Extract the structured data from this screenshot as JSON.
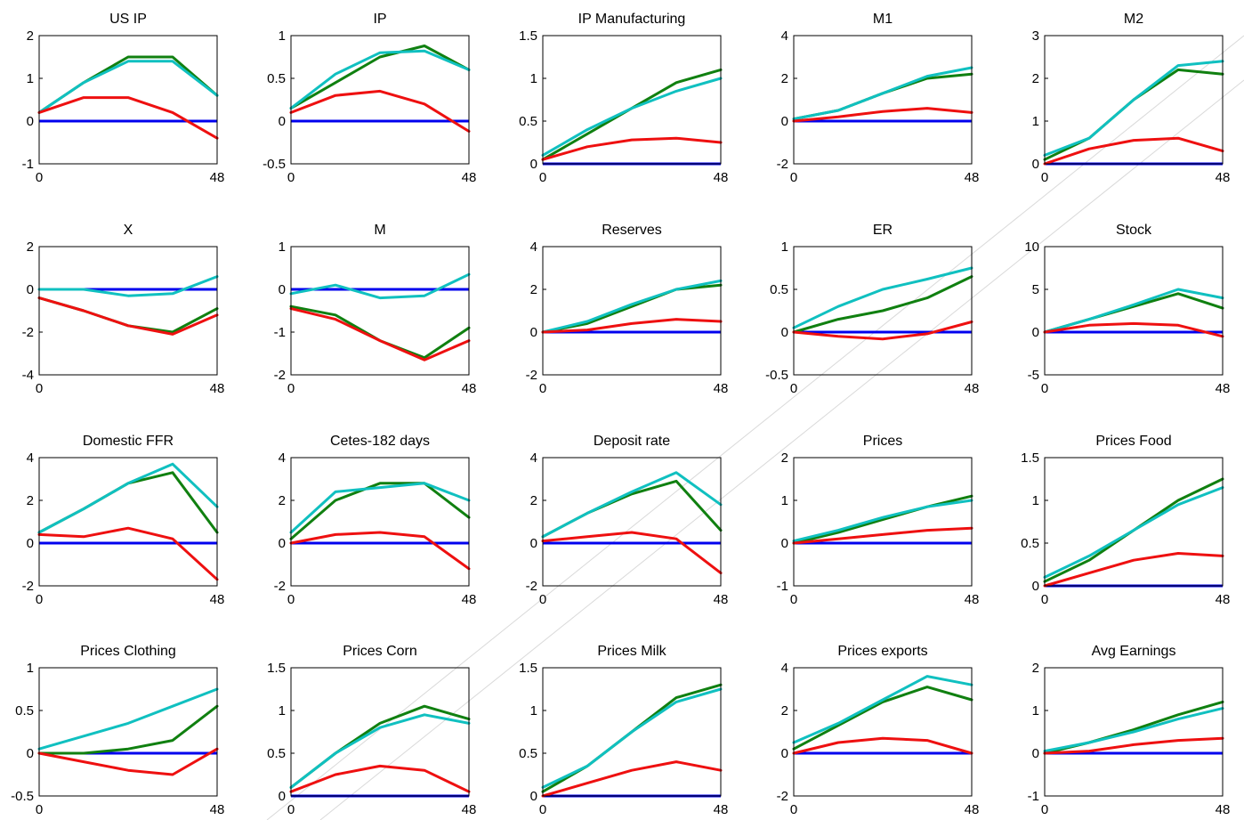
{
  "colors": {
    "green": "#108010",
    "cyan": "#10c0c0",
    "red": "#ee1010",
    "zero_line": "#0000ee"
  },
  "x_range": [
    0,
    48
  ],
  "x_tick_labels": [
    "0",
    "48"
  ],
  "chart_data": [
    {
      "type": "line",
      "title": "US IP",
      "ylim": [
        -1,
        2
      ],
      "yticks": [
        "-1",
        "0",
        "1",
        "2"
      ],
      "x": [
        0,
        12,
        24,
        36,
        48
      ],
      "series": [
        {
          "color": "green",
          "values": [
            0.2,
            0.9,
            1.5,
            1.5,
            0.6
          ]
        },
        {
          "color": "cyan",
          "values": [
            0.2,
            0.9,
            1.4,
            1.4,
            0.6
          ]
        },
        {
          "color": "red",
          "values": [
            0.2,
            0.55,
            0.55,
            0.2,
            -0.4
          ]
        }
      ]
    },
    {
      "type": "line",
      "title": "IP",
      "ylim": [
        -0.5,
        1
      ],
      "yticks": [
        "-0.5",
        "0",
        "0.5",
        "1"
      ],
      "x": [
        0,
        12,
        24,
        36,
        48
      ],
      "series": [
        {
          "color": "green",
          "values": [
            0.15,
            0.45,
            0.75,
            0.88,
            0.6
          ]
        },
        {
          "color": "cyan",
          "values": [
            0.15,
            0.55,
            0.8,
            0.82,
            0.6
          ]
        },
        {
          "color": "red",
          "values": [
            0.1,
            0.3,
            0.35,
            0.2,
            -0.12
          ]
        }
      ]
    },
    {
      "type": "line",
      "title": "IP Manufacturing",
      "ylim": [
        0,
        1.5
      ],
      "yticks": [
        "0",
        "0.5",
        "1",
        "1.5"
      ],
      "x": [
        0,
        12,
        24,
        36,
        48
      ],
      "series": [
        {
          "color": "green",
          "values": [
            0.05,
            0.35,
            0.65,
            0.95,
            1.1
          ]
        },
        {
          "color": "cyan",
          "values": [
            0.1,
            0.4,
            0.65,
            0.85,
            1.0
          ]
        },
        {
          "color": "red",
          "values": [
            0.05,
            0.2,
            0.28,
            0.3,
            0.25
          ]
        }
      ]
    },
    {
      "type": "line",
      "title": "M1",
      "ylim": [
        -2,
        4
      ],
      "yticks": [
        "-2",
        "0",
        "2",
        "4"
      ],
      "x": [
        0,
        12,
        24,
        36,
        48
      ],
      "series": [
        {
          "color": "green",
          "values": [
            0.1,
            0.5,
            1.3,
            2.0,
            2.2
          ]
        },
        {
          "color": "cyan",
          "values": [
            0.1,
            0.5,
            1.3,
            2.1,
            2.5
          ]
        },
        {
          "color": "red",
          "values": [
            0.0,
            0.2,
            0.45,
            0.6,
            0.4
          ]
        }
      ]
    },
    {
      "type": "line",
      "title": "M2",
      "ylim": [
        0,
        3
      ],
      "yticks": [
        "0",
        "1",
        "2",
        "3"
      ],
      "x": [
        0,
        12,
        24,
        36,
        48
      ],
      "series": [
        {
          "color": "green",
          "values": [
            0.1,
            0.6,
            1.5,
            2.2,
            2.1
          ]
        },
        {
          "color": "cyan",
          "values": [
            0.2,
            0.6,
            1.5,
            2.3,
            2.4
          ]
        },
        {
          "color": "red",
          "values": [
            0.0,
            0.35,
            0.55,
            0.6,
            0.3
          ]
        }
      ]
    },
    {
      "type": "line",
      "title": "X",
      "ylim": [
        -4,
        2
      ],
      "yticks": [
        "-4",
        "-2",
        "0",
        "2"
      ],
      "x": [
        0,
        12,
        24,
        36,
        48
      ],
      "series": [
        {
          "color": "green",
          "values": [
            -0.4,
            -1.0,
            -1.7,
            -2.0,
            -0.9
          ]
        },
        {
          "color": "cyan",
          "values": [
            0.0,
            0.0,
            -0.3,
            -0.2,
            0.6
          ]
        },
        {
          "color": "red",
          "values": [
            -0.4,
            -1.0,
            -1.7,
            -2.1,
            -1.2
          ]
        }
      ]
    },
    {
      "type": "line",
      "title": "M",
      "ylim": [
        -2,
        1
      ],
      "yticks": [
        "-2",
        "-1",
        "0",
        "1"
      ],
      "x": [
        0,
        12,
        24,
        36,
        48
      ],
      "series": [
        {
          "color": "green",
          "values": [
            -0.4,
            -0.6,
            -1.2,
            -1.6,
            -0.9
          ]
        },
        {
          "color": "cyan",
          "values": [
            -0.1,
            0.1,
            -0.2,
            -0.15,
            0.35
          ]
        },
        {
          "color": "red",
          "values": [
            -0.45,
            -0.7,
            -1.2,
            -1.65,
            -1.2
          ]
        }
      ]
    },
    {
      "type": "line",
      "title": "Reserves",
      "ylim": [
        -2,
        4
      ],
      "yticks": [
        "-2",
        "0",
        "2",
        "4"
      ],
      "x": [
        0,
        12,
        24,
        36,
        48
      ],
      "series": [
        {
          "color": "green",
          "values": [
            0.0,
            0.4,
            1.2,
            2.0,
            2.2
          ]
        },
        {
          "color": "cyan",
          "values": [
            0.0,
            0.5,
            1.3,
            2.0,
            2.4
          ]
        },
        {
          "color": "red",
          "values": [
            0.0,
            0.1,
            0.4,
            0.6,
            0.5
          ]
        }
      ]
    },
    {
      "type": "line",
      "title": "ER",
      "ylim": [
        -0.5,
        1
      ],
      "yticks": [
        "-0.5",
        "0",
        "0.5",
        "1"
      ],
      "x": [
        0,
        12,
        24,
        36,
        48
      ],
      "series": [
        {
          "color": "green",
          "values": [
            0.0,
            0.15,
            0.25,
            0.4,
            0.65
          ]
        },
        {
          "color": "cyan",
          "values": [
            0.05,
            0.3,
            0.5,
            0.62,
            0.75
          ]
        },
        {
          "color": "red",
          "values": [
            0.0,
            -0.05,
            -0.08,
            -0.02,
            0.12
          ]
        }
      ]
    },
    {
      "type": "line",
      "title": "Stock",
      "ylim": [
        -5,
        10
      ],
      "yticks": [
        "-5",
        "0",
        "5",
        "10"
      ],
      "x": [
        0,
        12,
        24,
        36,
        48
      ],
      "series": [
        {
          "color": "green",
          "values": [
            0.0,
            1.5,
            3.0,
            4.5,
            2.8
          ]
        },
        {
          "color": "cyan",
          "values": [
            0.0,
            1.5,
            3.2,
            5.0,
            4.0
          ]
        },
        {
          "color": "red",
          "values": [
            0.0,
            0.8,
            1.0,
            0.8,
            -0.5
          ]
        }
      ]
    },
    {
      "type": "line",
      "title": "Domestic FFR",
      "ylim": [
        -2,
        4
      ],
      "yticks": [
        "-2",
        "0",
        "2",
        "4"
      ],
      "x": [
        0,
        12,
        24,
        36,
        48
      ],
      "series": [
        {
          "color": "green",
          "values": [
            0.5,
            1.6,
            2.8,
            3.3,
            0.5
          ]
        },
        {
          "color": "cyan",
          "values": [
            0.5,
            1.6,
            2.8,
            3.7,
            1.7
          ]
        },
        {
          "color": "red",
          "values": [
            0.4,
            0.3,
            0.7,
            0.2,
            -1.7
          ]
        }
      ]
    },
    {
      "type": "line",
      "title": "Cetes-182 days",
      "ylim": [
        -2,
        4
      ],
      "yticks": [
        "-2",
        "0",
        "2",
        "4"
      ],
      "x": [
        0,
        12,
        24,
        36,
        48
      ],
      "series": [
        {
          "color": "green",
          "values": [
            0.2,
            2.0,
            2.8,
            2.8,
            1.2
          ]
        },
        {
          "color": "cyan",
          "values": [
            0.5,
            2.4,
            2.6,
            2.8,
            2.0
          ]
        },
        {
          "color": "red",
          "values": [
            0.0,
            0.4,
            0.5,
            0.3,
            -1.2
          ]
        }
      ]
    },
    {
      "type": "line",
      "title": "Deposit rate",
      "ylim": [
        -2,
        4
      ],
      "yticks": [
        "-2",
        "0",
        "2",
        "4"
      ],
      "x": [
        0,
        12,
        24,
        36,
        48
      ],
      "series": [
        {
          "color": "green",
          "values": [
            0.3,
            1.4,
            2.3,
            2.9,
            0.6
          ]
        },
        {
          "color": "cyan",
          "values": [
            0.3,
            1.4,
            2.4,
            3.3,
            1.8
          ]
        },
        {
          "color": "red",
          "values": [
            0.1,
            0.3,
            0.5,
            0.2,
            -1.4
          ]
        }
      ]
    },
    {
      "type": "line",
      "title": "Prices",
      "ylim": [
        -1,
        2
      ],
      "yticks": [
        "-1",
        "0",
        "1",
        "2"
      ],
      "x": [
        0,
        12,
        24,
        36,
        48
      ],
      "series": [
        {
          "color": "green",
          "values": [
            0.0,
            0.25,
            0.55,
            0.85,
            1.1
          ]
        },
        {
          "color": "cyan",
          "values": [
            0.05,
            0.3,
            0.6,
            0.85,
            1.0
          ]
        },
        {
          "color": "red",
          "values": [
            0.0,
            0.1,
            0.2,
            0.3,
            0.35
          ]
        }
      ]
    },
    {
      "type": "line",
      "title": "Prices Food",
      "ylim": [
        0,
        1.5
      ],
      "yticks": [
        "0",
        "0.5",
        "1",
        "1.5"
      ],
      "x": [
        0,
        12,
        24,
        36,
        48
      ],
      "series": [
        {
          "color": "green",
          "values": [
            0.05,
            0.3,
            0.65,
            1.0,
            1.25
          ]
        },
        {
          "color": "cyan",
          "values": [
            0.1,
            0.35,
            0.65,
            0.95,
            1.15
          ]
        },
        {
          "color": "red",
          "values": [
            0.0,
            0.15,
            0.3,
            0.38,
            0.35
          ]
        }
      ]
    },
    {
      "type": "line",
      "title": "Prices Clothing",
      "ylim": [
        -0.5,
        1
      ],
      "yticks": [
        "-0.5",
        "0",
        "0.5",
        "1"
      ],
      "x": [
        0,
        12,
        24,
        36,
        48
      ],
      "series": [
        {
          "color": "green",
          "values": [
            0.0,
            0.0,
            0.05,
            0.15,
            0.55
          ]
        },
        {
          "color": "cyan",
          "values": [
            0.05,
            0.2,
            0.35,
            0.55,
            0.75
          ]
        },
        {
          "color": "red",
          "values": [
            0.0,
            -0.1,
            -0.2,
            -0.25,
            0.05
          ]
        }
      ]
    },
    {
      "type": "line",
      "title": "Prices Corn",
      "ylim": [
        0,
        1.5
      ],
      "yticks": [
        "0",
        "0.5",
        "1",
        "1.5"
      ],
      "x": [
        0,
        12,
        24,
        36,
        48
      ],
      "series": [
        {
          "color": "green",
          "values": [
            0.1,
            0.5,
            0.85,
            1.05,
            0.9
          ]
        },
        {
          "color": "cyan",
          "values": [
            0.1,
            0.5,
            0.8,
            0.95,
            0.85
          ]
        },
        {
          "color": "red",
          "values": [
            0.05,
            0.25,
            0.35,
            0.3,
            0.05
          ]
        }
      ]
    },
    {
      "type": "line",
      "title": "Prices Milk",
      "ylim": [
        0,
        1.5
      ],
      "yticks": [
        "0",
        "0.5",
        "1",
        "1.5"
      ],
      "x": [
        0,
        12,
        24,
        36,
        48
      ],
      "series": [
        {
          "color": "green",
          "values": [
            0.05,
            0.35,
            0.75,
            1.15,
            1.3
          ]
        },
        {
          "color": "cyan",
          "values": [
            0.1,
            0.35,
            0.75,
            1.1,
            1.25
          ]
        },
        {
          "color": "red",
          "values": [
            0.0,
            0.15,
            0.3,
            0.4,
            0.3
          ]
        }
      ]
    },
    {
      "type": "line",
      "title": "Prices exports",
      "ylim": [
        -2,
        4
      ],
      "yticks": [
        "-2",
        "0",
        "2",
        "4"
      ],
      "x": [
        0,
        12,
        24,
        36,
        48
      ],
      "series": [
        {
          "color": "green",
          "values": [
            0.2,
            1.3,
            2.4,
            3.1,
            2.5
          ]
        },
        {
          "color": "cyan",
          "values": [
            0.5,
            1.4,
            2.5,
            3.6,
            3.2
          ]
        },
        {
          "color": "red",
          "values": [
            0.0,
            0.5,
            0.7,
            0.6,
            0.0
          ]
        }
      ]
    },
    {
      "type": "line",
      "title": "Avg Earnings",
      "ylim": [
        -1,
        2
      ],
      "yticks": [
        "-1",
        "0",
        "1",
        "2"
      ],
      "x": [
        0,
        12,
        24,
        36,
        48
      ],
      "series": [
        {
          "color": "green",
          "values": [
            0.0,
            0.25,
            0.55,
            0.9,
            1.2
          ]
        },
        {
          "color": "cyan",
          "values": [
            0.05,
            0.25,
            0.5,
            0.8,
            1.05
          ]
        },
        {
          "color": "red",
          "values": [
            0.0,
            0.05,
            0.2,
            0.3,
            0.35
          ]
        }
      ]
    }
  ]
}
